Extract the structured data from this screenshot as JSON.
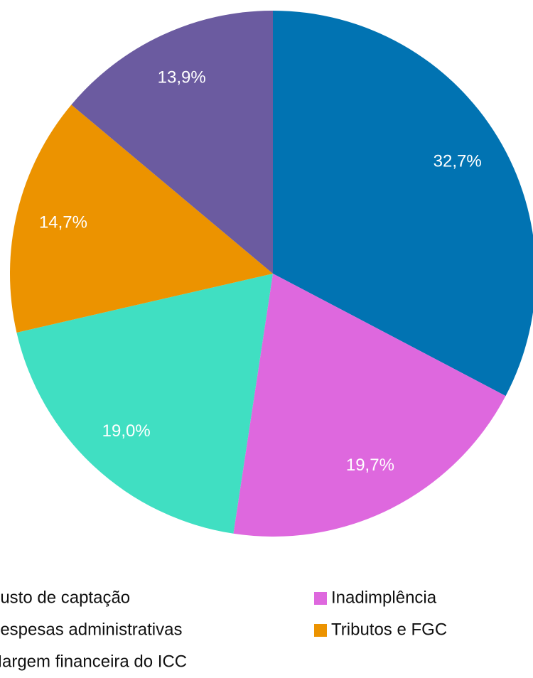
{
  "chart_data": {
    "type": "pie",
    "categories": [
      "Custo de captação",
      "Inadimplência",
      "Despesas administrativas",
      "Tributos e FGC",
      "Margem financeira do ICC"
    ],
    "values": [
      32.7,
      19.7,
      19.0,
      14.7,
      13.9
    ],
    "value_labels": [
      "32,7%",
      "19,7%",
      "19,0%",
      "14,7%",
      "13,9%"
    ],
    "colors": [
      "#0173b2",
      "#de68de",
      "#40dfc2",
      "#ec9300",
      "#6b5ba0"
    ],
    "legend": "bottom"
  }
}
